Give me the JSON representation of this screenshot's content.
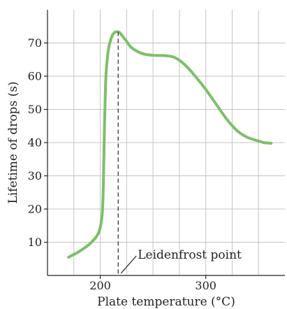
{
  "chart_data": {
    "type": "line",
    "title": "",
    "xlabel": "Plate temperature (°C)",
    "ylabel": "Lifetime of drops (s)",
    "xlim": [
      150,
      375
    ],
    "ylim": [
      0,
      80
    ],
    "x_ticks": [
      200,
      300
    ],
    "x_tick_labels": [
      "200",
      "300"
    ],
    "x_minor_grid": [
      175,
      225,
      250,
      275,
      325,
      350
    ],
    "y_ticks": [
      10,
      20,
      30,
      40,
      50,
      60,
      70
    ],
    "y_tick_labels": [
      "10",
      "20",
      "30",
      "40",
      "50",
      "60",
      "70"
    ],
    "grid": true,
    "line_color": "#7dbf6a",
    "series": [
      {
        "x": [
          170,
          180,
          190,
          197,
          200,
          202,
          203,
          204,
          205,
          206,
          208,
          210,
          212,
          215,
          218,
          220,
          225,
          230,
          240,
          250,
          260,
          270,
          280,
          290,
          300,
          310,
          320,
          330,
          340,
          350,
          355,
          362
        ],
        "y": [
          5.5,
          7.2,
          9.5,
          12.0,
          14.5,
          19.0,
          28.0,
          45.0,
          57.0,
          63.0,
          68.5,
          71.0,
          72.6,
          73.4,
          73.2,
          72.5,
          70.5,
          68.5,
          66.8,
          66.3,
          66.2,
          65.7,
          63.5,
          60.0,
          56.0,
          51.5,
          47.0,
          43.5,
          41.5,
          40.5,
          40.0,
          39.8
        ]
      }
    ],
    "annotations": [
      {
        "text": "Leidenfrost point",
        "x": 217
      }
    ]
  }
}
